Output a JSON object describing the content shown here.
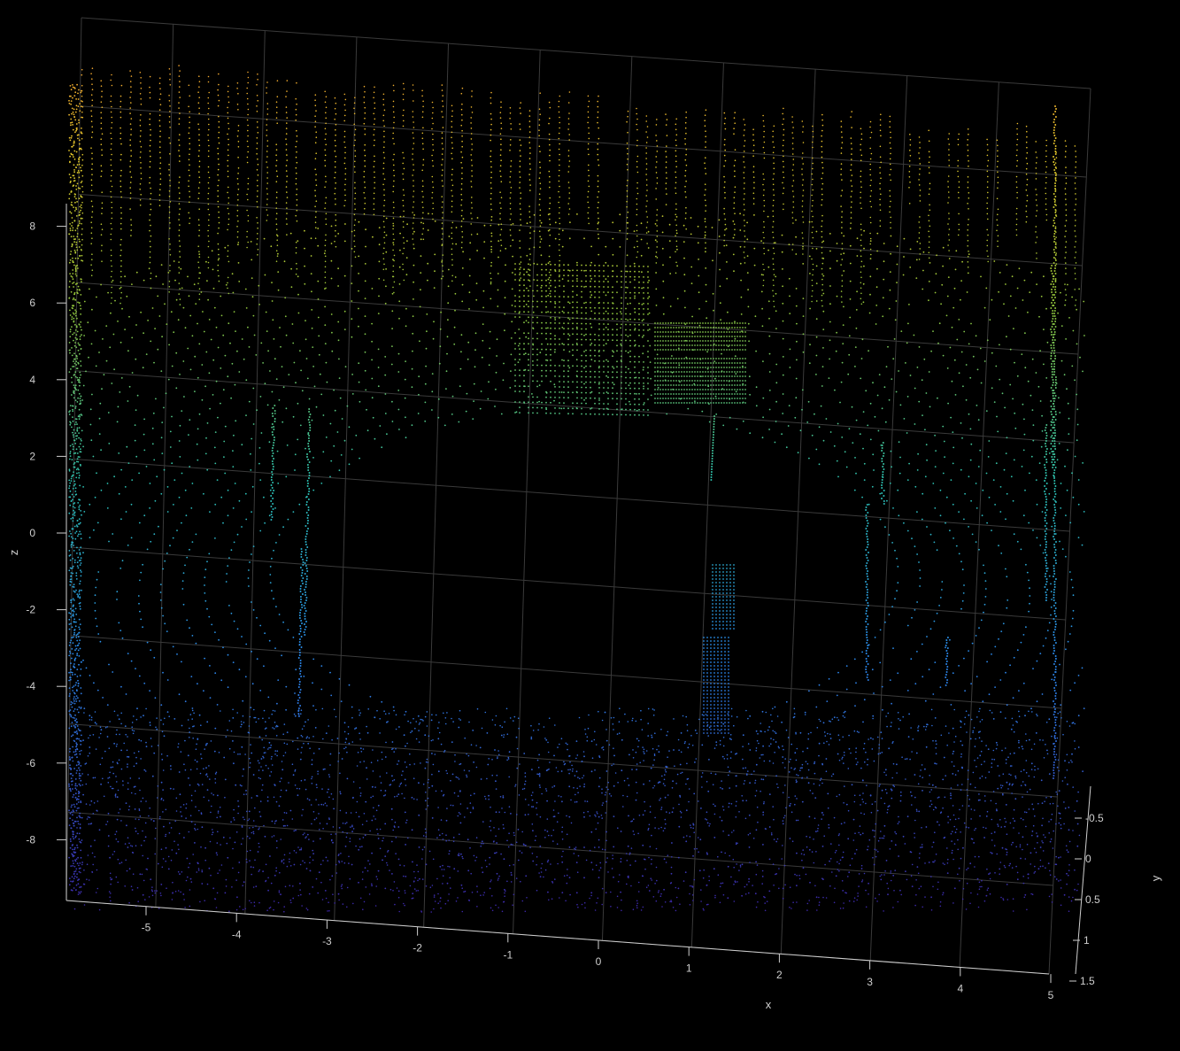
{
  "chart_data": {
    "type": "scatter",
    "title": "",
    "xlabel": "x",
    "ylabel": "y",
    "zlabel": "z",
    "background": "#000000",
    "grid": true,
    "colormap": "parula-like (blue -> cyan -> green -> yellow -> orange)",
    "colors": {
      "low": "#3d26a8",
      "mid_low": "#2b8cef",
      "mid": "#2cc4b4",
      "mid_high": "#8dc43c",
      "high": "#e5c92a",
      "top": "#f7a030",
      "axis": "#cfcfcf",
      "grid": "#3a3a3a"
    },
    "x_ticks": [
      "-5",
      "-4",
      "-3",
      "-2",
      "-1",
      "0",
      "1",
      "2",
      "3",
      "4",
      "5"
    ],
    "y_ticks": [
      "-0.5",
      "0",
      "0.5",
      "1",
      "1.5"
    ],
    "z_ticks": [
      "8",
      "6",
      "4",
      "2",
      "0",
      "-2",
      "-4",
      "-6",
      "-8"
    ],
    "xlim": [
      -5.9,
      5.1
    ],
    "ylim": [
      -0.6,
      1.5
    ],
    "zlim": [
      -9.6,
      8.6
    ],
    "description_visible": "point cloud rendered as dots, colored by height"
  }
}
